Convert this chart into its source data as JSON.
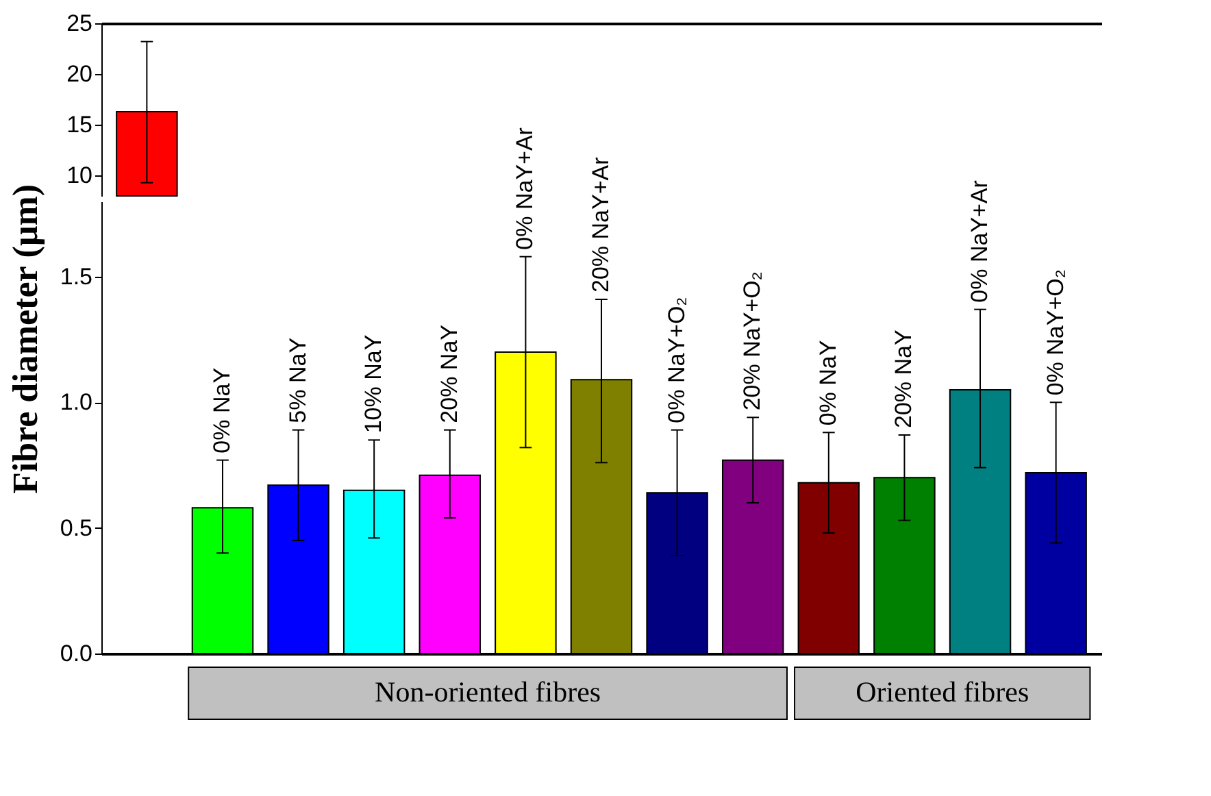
{
  "chart_data": [
    {
      "type": "bar",
      "categories": [
        null,
        null,
        null,
        null,
        null,
        null,
        null,
        null,
        null,
        null,
        null,
        null,
        null
      ],
      "values": [
        16.3,
        null,
        null,
        null,
        null,
        null,
        null,
        null,
        null,
        null,
        null,
        null,
        null
      ],
      "errors": [
        [
          9.3,
          23.2
        ],
        null,
        null,
        null,
        null,
        null,
        null,
        null,
        null,
        null,
        null,
        null,
        null
      ],
      "colors": [
        "#ff0000",
        "#00ff00",
        "#0000ff",
        "#00ffff",
        "#ff00ff",
        "#ffff00",
        "#808000",
        "#000080",
        "#800080",
        "#800000",
        "#008000",
        "#008080",
        "#0000a0"
      ],
      "ylim": [
        8,
        25
      ],
      "yticks": [
        10,
        15,
        20,
        25
      ],
      "tick_labels": "y",
      "grid": false,
      "legend": false
    },
    {
      "type": "bar",
      "categories": [
        null,
        "0% NaY",
        "5% NaY",
        "10% NaY",
        "20% NaY",
        "0% NaY+Ar",
        "20% NaY+Ar",
        "0% NaY+O₂",
        "20% NaY+O₂",
        "0% NaY",
        "20% NaY",
        "0% NaY+Ar",
        "0% NaY+O₂"
      ],
      "values": [
        null,
        0.58,
        0.67,
        0.65,
        0.71,
        1.2,
        1.09,
        0.64,
        0.77,
        0.68,
        0.7,
        1.05,
        0.72
      ],
      "errors": [
        null,
        [
          0.4,
          0.77
        ],
        [
          0.45,
          0.89
        ],
        [
          0.46,
          0.85
        ],
        [
          0.54,
          0.89
        ],
        [
          0.82,
          1.58
        ],
        [
          0.76,
          1.41
        ],
        [
          0.39,
          0.89
        ],
        [
          0.6,
          0.94
        ],
        [
          0.48,
          0.88
        ],
        [
          0.53,
          0.87
        ],
        [
          0.74,
          1.37
        ],
        [
          0.44,
          1.0
        ]
      ],
      "colors": [
        "#ff0000",
        "#00ff00",
        "#0000ff",
        "#00ffff",
        "#ff00ff",
        "#ffff00",
        "#808000",
        "#000080",
        "#800080",
        "#800000",
        "#008000",
        "#008080",
        "#0000a0"
      ],
      "ylim": [
        0,
        1.8
      ],
      "yticks": [
        {
          "value": 0,
          "label": "0.0"
        },
        0.5,
        {
          "value": 1,
          "label": "1.0"
        },
        1.5
      ],
      "ylabel": "Fibre diameter (μm)",
      "tick_labels": "y",
      "grid": false,
      "legend": false,
      "annotations": [
        "Non-oriented fibres",
        "Oriented fibres"
      ]
    }
  ]
}
